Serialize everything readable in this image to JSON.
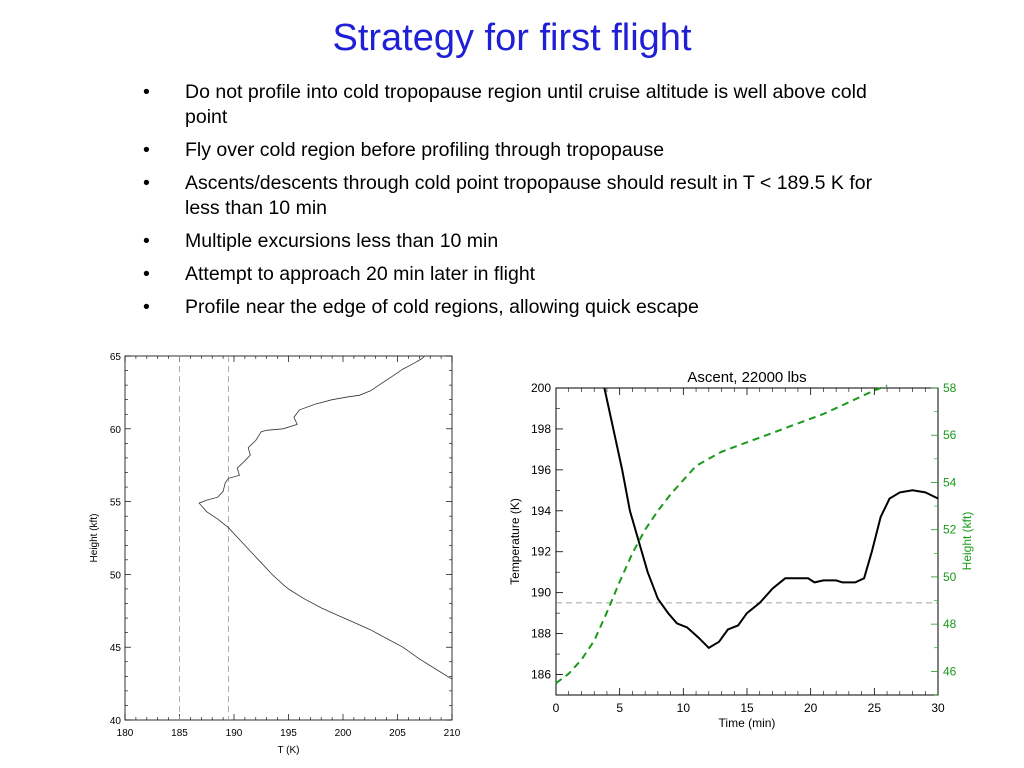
{
  "slide": {
    "title": "Strategy for first flight",
    "bullet_symbol": "•",
    "bullets": [
      "Do not profile into cold tropopause region until cruise altitude is well above cold point",
      "Fly over cold region before profiling through tropopause",
      "Ascents/descents through cold point tropopause should result in T < 189.5 K for less than 10 min",
      "Multiple excursions less than 10 min",
      "Attempt to approach 20 min later in flight",
      "Profile near the edge of cold regions, allowing quick escape"
    ]
  },
  "chart_data": [
    {
      "type": "line",
      "title": "",
      "xlabel": "T (K)",
      "ylabel": "Height (kft)",
      "xlim": [
        180,
        210
      ],
      "ylim": [
        40,
        65
      ],
      "xticks": [
        180,
        185,
        190,
        195,
        200,
        205,
        210
      ],
      "yticks": [
        40,
        45,
        50,
        55,
        60,
        65
      ],
      "grid": false,
      "colors": {
        "profile": "#333333",
        "reference": "#9a9a9a"
      },
      "reference_lines": [
        {
          "axis": "x",
          "value": 185,
          "style": "dashed"
        },
        {
          "axis": "x",
          "value": 189.5,
          "style": "dashed"
        }
      ],
      "series": [
        {
          "points": [
            [
              210,
              42.8
            ],
            [
              208.5,
              43.5
            ],
            [
              207,
              44.2
            ],
            [
              205.5,
              45
            ],
            [
              204,
              45.6
            ],
            [
              202.5,
              46.2
            ],
            [
              201,
              46.7
            ],
            [
              199.5,
              47.2
            ],
            [
              198,
              47.7
            ],
            [
              196.5,
              48.3
            ],
            [
              195,
              49
            ],
            [
              194.5,
              49.3
            ],
            [
              193.5,
              50
            ],
            [
              192.5,
              50.8
            ],
            [
              191.5,
              51.6
            ],
            [
              190.5,
              52.4
            ],
            [
              189.5,
              53.2
            ],
            [
              188.5,
              53.8
            ],
            [
              187.5,
              54.3
            ],
            [
              186.8,
              54.9
            ],
            [
              187.5,
              55.1
            ],
            [
              188.5,
              55.3
            ],
            [
              189,
              55.7
            ],
            [
              189.2,
              56.3
            ],
            [
              189.5,
              56.6
            ],
            [
              190.5,
              56.8
            ],
            [
              190.3,
              57.3
            ],
            [
              191,
              57.8
            ],
            [
              191.5,
              58.2
            ],
            [
              191.3,
              58.7
            ],
            [
              192,
              59.2
            ],
            [
              192.5,
              59.8
            ],
            [
              193,
              59.9
            ],
            [
              194.5,
              60
            ],
            [
              195.8,
              60.3
            ],
            [
              195.5,
              60.8
            ],
            [
              196,
              61.3
            ],
            [
              197.5,
              61.7
            ],
            [
              199,
              62
            ],
            [
              200.5,
              62.2
            ],
            [
              201.5,
              62.3
            ],
            [
              202.5,
              62.6
            ],
            [
              203.5,
              63.1
            ],
            [
              204.5,
              63.6
            ],
            [
              205.5,
              64.1
            ],
            [
              206.5,
              64.5
            ],
            [
              207.2,
              64.8
            ],
            [
              207.5,
              65
            ]
          ]
        }
      ]
    },
    {
      "type": "line",
      "title": "Ascent, 22000 lbs",
      "xlabel": "Time (min)",
      "ylabel": "Temperature (K)",
      "y2label": "Height (kft)",
      "xlim": [
        0,
        30
      ],
      "ylim": [
        185,
        200
      ],
      "y2lim": [
        45,
        58
      ],
      "xticks": [
        0,
        5,
        10,
        15,
        20,
        25,
        30
      ],
      "yticks": [
        186,
        188,
        190,
        192,
        194,
        196,
        198,
        200
      ],
      "y2ticks": [
        46,
        48,
        50,
        52,
        54,
        56,
        58
      ],
      "grid": false,
      "colors": {
        "temperature": "#000000",
        "height": "#1a9a1a",
        "reference": "#888888"
      },
      "reference_lines": [
        {
          "axis": "y",
          "value": 189.5,
          "style": "dashed"
        }
      ],
      "series": [
        {
          "axis": "left",
          "style": "solid",
          "points": [
            [
              3.8,
              200
            ],
            [
              4.5,
              198
            ],
            [
              5.2,
              196
            ],
            [
              5.8,
              194
            ],
            [
              6.5,
              192.5
            ],
            [
              7.2,
              191
            ],
            [
              8,
              189.7
            ],
            [
              8.8,
              189
            ],
            [
              9.5,
              188.5
            ],
            [
              10.3,
              188.3
            ],
            [
              11.2,
              187.8
            ],
            [
              12,
              187.3
            ],
            [
              12.8,
              187.6
            ],
            [
              13.5,
              188.2
            ],
            [
              14.3,
              188.4
            ],
            [
              15,
              189
            ],
            [
              16,
              189.5
            ],
            [
              17,
              190.2
            ],
            [
              18,
              190.7
            ],
            [
              19,
              190.7
            ],
            [
              19.8,
              190.7
            ],
            [
              20.3,
              190.5
            ],
            [
              21,
              190.6
            ],
            [
              22,
              190.6
            ],
            [
              22.5,
              190.5
            ],
            [
              23.5,
              190.5
            ],
            [
              24.2,
              190.7
            ],
            [
              24.8,
              192
            ],
            [
              25.5,
              193.7
            ],
            [
              26.2,
              194.6
            ],
            [
              27,
              194.9
            ],
            [
              28,
              195
            ],
            [
              29,
              194.9
            ],
            [
              30,
              194.6
            ]
          ]
        },
        {
          "axis": "right",
          "style": "dashed",
          "points": [
            [
              0,
              45.5
            ],
            [
              1,
              45.9
            ],
            [
              2,
              46.5
            ],
            [
              3,
              47.3
            ],
            [
              4,
              48.5
            ],
            [
              5,
              49.8
            ],
            [
              6,
              51
            ],
            [
              7,
              52
            ],
            [
              8,
              52.8
            ],
            [
              9,
              53.5
            ],
            [
              10,
              54.1
            ],
            [
              11,
              54.7
            ],
            [
              12,
              55
            ],
            [
              13,
              55.3
            ],
            [
              15,
              55.7
            ],
            [
              17,
              56.1
            ],
            [
              19,
              56.5
            ],
            [
              21,
              56.9
            ],
            [
              23,
              57.4
            ],
            [
              25,
              57.9
            ],
            [
              26,
              58.1
            ]
          ]
        }
      ]
    }
  ]
}
